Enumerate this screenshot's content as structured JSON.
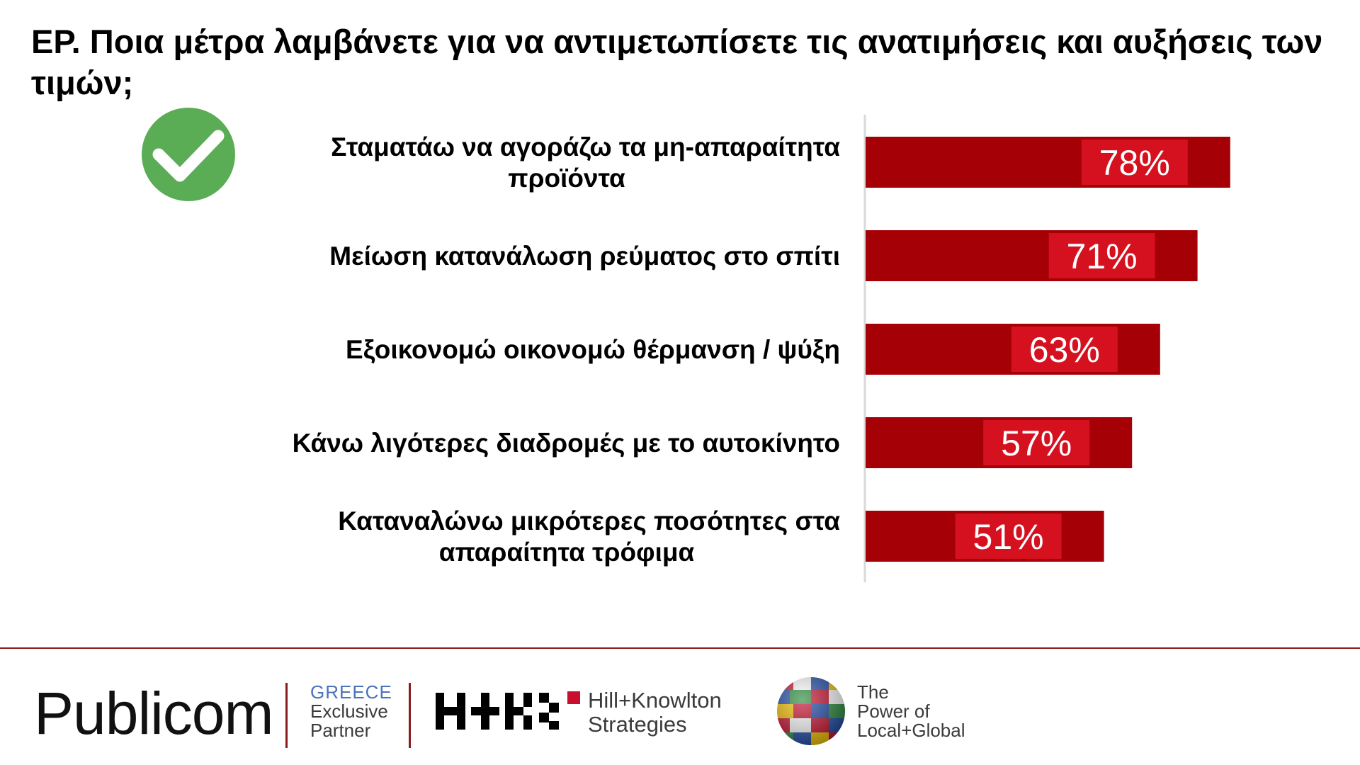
{
  "title": "ΕΡ. Ποια μέτρα λαμβάνετε για να αντιμετωπίσετε τις ανατιμήσεις και αυξήσεις των τιμών;",
  "icons": {
    "badge": "check-circle-icon"
  },
  "colors": {
    "bar": "#a50005",
    "value_box": "#d5111f",
    "badge": "#5aac55",
    "footer_rule": "#8b1a1a"
  },
  "chart_data": {
    "type": "bar",
    "orientation": "horizontal",
    "title": "ΕΡ. Ποια μέτρα λαμβάνετε για να αντιμετωπίσετε τις ανατιμήσεις και αυξήσεις των τιμών;",
    "categories": [
      [
        "Σταματάω να αγοράζω τα μη-απαραίτητα",
        "προϊόντα"
      ],
      [
        "Μείωση κατανάλωση ρεύματος στο σπίτι"
      ],
      [
        "Εξοικονομώ οικονομώ θέρμανση / ψύξη"
      ],
      [
        "Κάνω λιγότερες διαδρομές με το αυτοκίνητο"
      ],
      [
        "Καταναλώνω μικρότερες ποσότητες στα",
        "απαραίτητα τρόφιμα"
      ]
    ],
    "values": [
      78,
      71,
      63,
      57,
      51
    ],
    "value_labels": [
      "78%",
      "71%",
      "63%",
      "57%",
      "51%"
    ],
    "unit": "%",
    "xlim": [
      0,
      100
    ],
    "xlabel": "",
    "ylabel": "",
    "grid": false,
    "legend": "none"
  },
  "footer": {
    "brand": "Publicom",
    "partner_lines": [
      "GREECE",
      "Exclusive",
      "Partner"
    ],
    "hk_lines": [
      "Hill+Knowlton",
      "Strategies"
    ],
    "global_lines": [
      "The",
      "Power of",
      "Local+Global"
    ],
    "icons": {
      "hk": "hk-logo-icon",
      "globe": "flag-globe-icon"
    }
  }
}
